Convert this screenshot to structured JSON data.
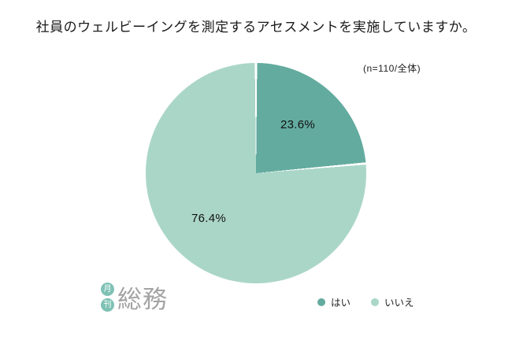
{
  "title": "社員のウェルビーイングを測定するアセスメントを実施していますか。",
  "sample_note": "(n=110/全体)",
  "chart_data": {
    "type": "pie",
    "title": "社員のウェルビーイングを測定するアセスメントを実施していますか。",
    "categories": [
      "はい",
      "いいえ"
    ],
    "values": [
      23.6,
      76.4
    ],
    "unit": "%",
    "labels": [
      "23.6%",
      "76.4%"
    ],
    "colors": [
      "#63ab9f",
      "#aad6c8"
    ],
    "start_angle": "top",
    "direction": "clockwise",
    "legend_position": "bottom-right",
    "annotation": "(n=110/全体)"
  },
  "legend": {
    "items": [
      {
        "label": "はい",
        "color": "#63ab9f"
      },
      {
        "label": "いいえ",
        "color": "#aad6c8"
      }
    ]
  },
  "logo": {
    "circle_top": "月",
    "circle_bottom": "刊",
    "text": "総務"
  }
}
